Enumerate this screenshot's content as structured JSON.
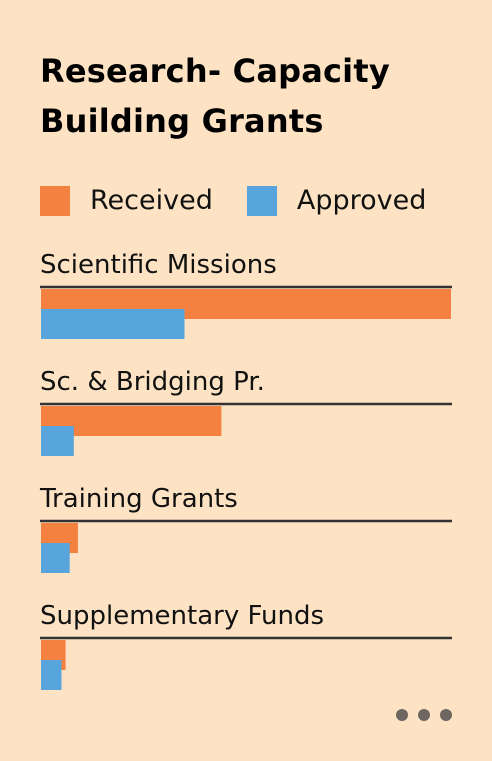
{
  "title": "Research- Capacity Building Grants",
  "colors": {
    "received": "#F58140",
    "approved": "#58A4DD",
    "background": "#FDE3C4",
    "baseline": "#333333"
  },
  "legend": {
    "received_label": "Received",
    "approved_label": "Approved"
  },
  "more_icon": "more-dots-icon",
  "chart_data": {
    "type": "bar",
    "orientation": "horizontal",
    "categories": [
      "Scientific Missions",
      "Sc. & Bridging Pr.",
      "Training Grants",
      "Supplementary Funds"
    ],
    "series": [
      {
        "name": "Received",
        "values": [
          100,
          44,
          9,
          6
        ]
      },
      {
        "name": "Approved",
        "values": [
          35,
          8,
          7,
          5
        ]
      }
    ],
    "xlim": [
      0,
      100
    ],
    "grid": false,
    "legend_position": "top"
  }
}
